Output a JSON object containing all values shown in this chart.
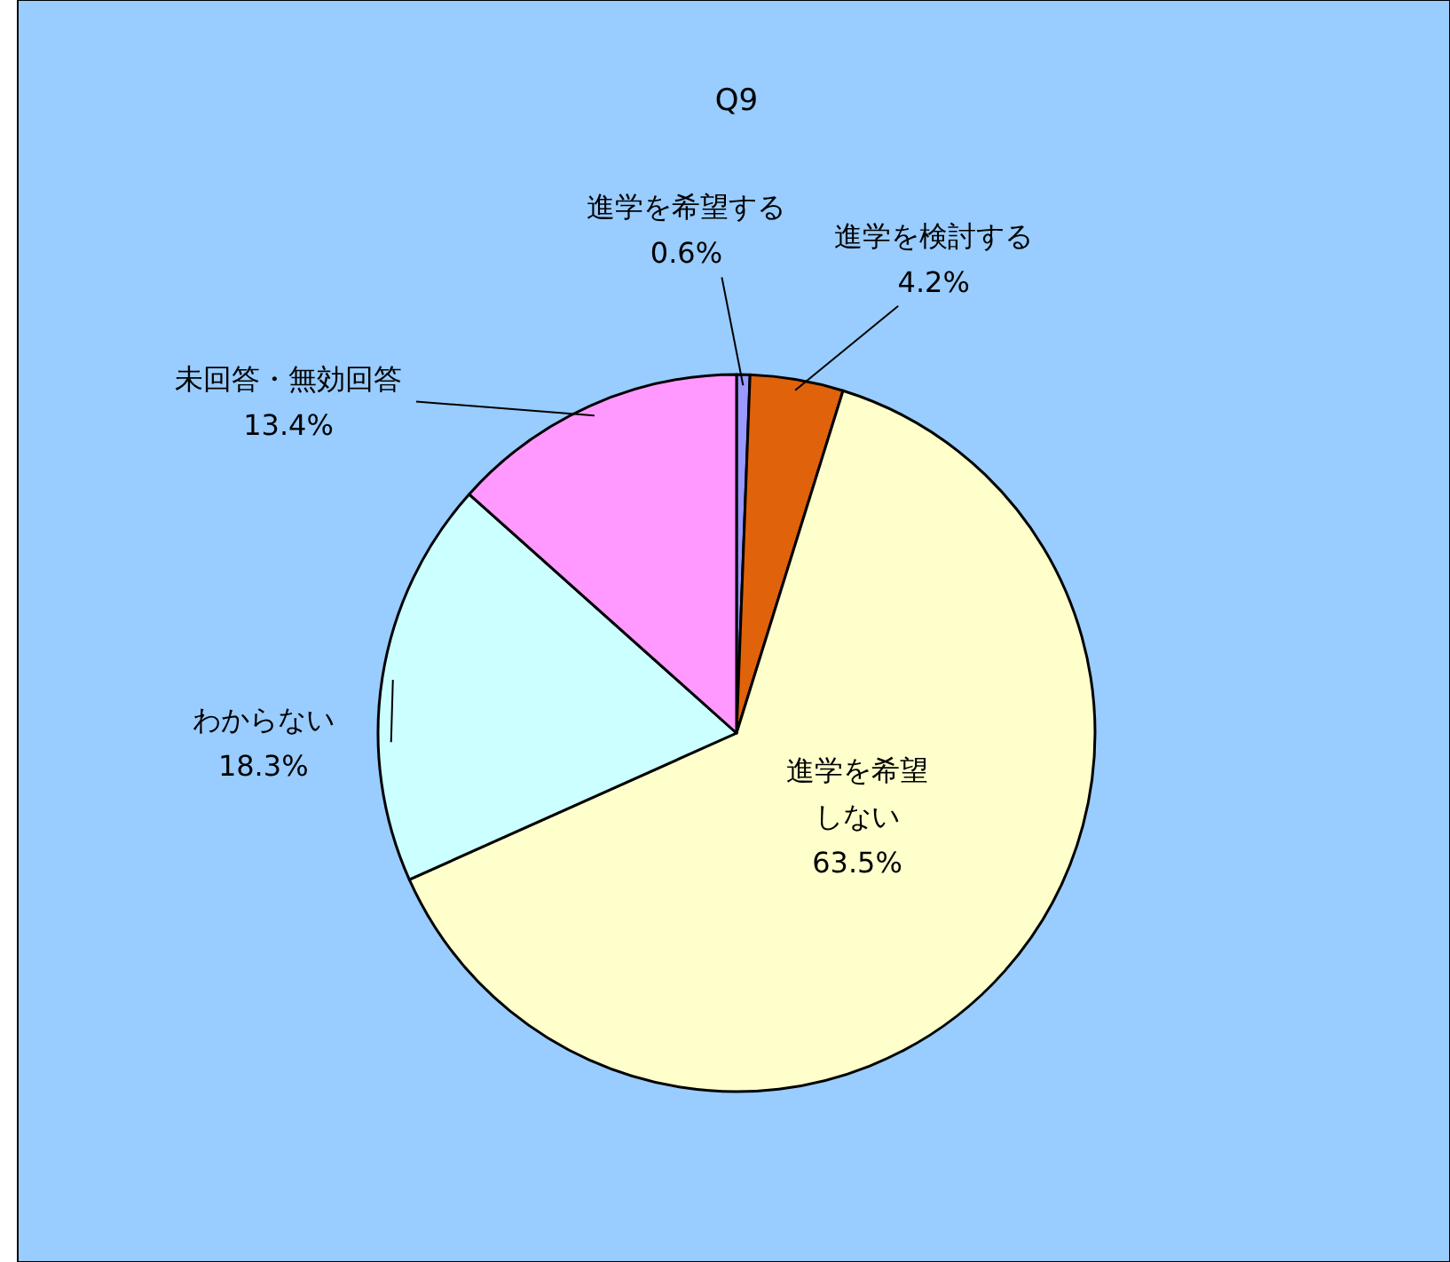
{
  "chart_data": {
    "type": "pie",
    "title": "Q9",
    "categories": [
      "進学を希望する",
      "進学を検討する",
      "進学を希望しない",
      "わからない",
      "未回答・無効回答"
    ],
    "values": [
      0.6,
      4.2,
      63.5,
      18.3,
      13.4
    ],
    "colors": [
      "#9999ff",
      "#e0620a",
      "#ffffcc",
      "#ccffff",
      "#ff99ff"
    ],
    "value_labels": [
      "0.6%",
      "4.2%",
      "63.5%",
      "18.3%",
      "13.4%"
    ]
  }
}
